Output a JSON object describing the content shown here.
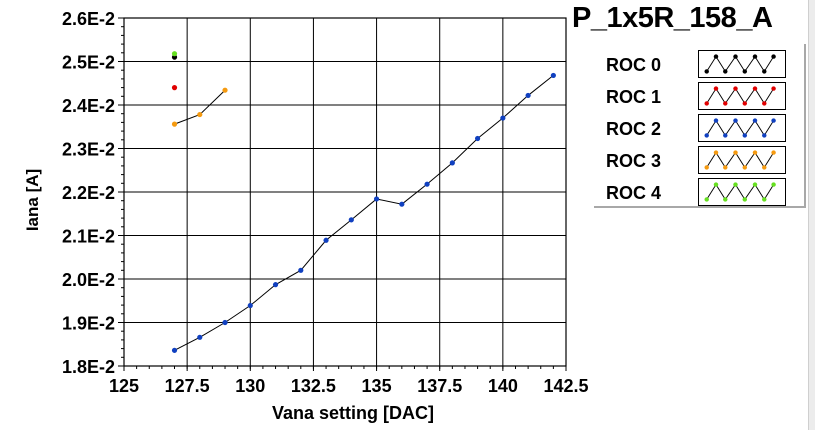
{
  "title": "P_1x5R_158_A",
  "chart_data": {
    "type": "scatter",
    "xlabel": "Vana setting [DAC]",
    "ylabel": "Iana [A]",
    "xlim": [
      125,
      142.5
    ],
    "ylim": [
      0.018,
      0.026
    ],
    "x_ticks": [
      125,
      127.5,
      130,
      132.5,
      135,
      137.5,
      140,
      142.5
    ],
    "x_tick_labels": [
      "125",
      "127.5",
      "130",
      "132.5",
      "135",
      "137.5",
      "140",
      "142.5"
    ],
    "y_ticks": [
      0.018,
      0.019,
      0.02,
      0.021,
      0.022,
      0.023,
      0.024,
      0.025,
      0.026
    ],
    "y_tick_labels": [
      "1.8E-2",
      "1.9E-2",
      "2.0E-2",
      "2.1E-2",
      "2.2E-2",
      "2.3E-2",
      "2.4E-2",
      "2.5E-2",
      "2.6E-2"
    ],
    "grid": true,
    "legend_position": "right",
    "series": [
      {
        "name": "ROC 0",
        "color": "#000000",
        "connected": false,
        "x": [
          127
        ],
        "y": [
          0.0251
        ]
      },
      {
        "name": "ROC 1",
        "color": "#e00000",
        "connected": false,
        "x": [
          127
        ],
        "y": [
          0.0244
        ]
      },
      {
        "name": "ROC 2",
        "color": "#1040c0",
        "connected": true,
        "x": [
          127,
          128,
          129,
          130,
          131,
          132,
          133,
          134,
          135,
          136,
          137,
          138,
          139,
          140,
          141,
          142
        ],
        "y": [
          0.01836,
          0.01866,
          0.019,
          0.01939,
          0.01987,
          0.0202,
          0.02089,
          0.02136,
          0.02184,
          0.02172,
          0.02218,
          0.02267,
          0.02323,
          0.0237,
          0.02422,
          0.02468
        ]
      },
      {
        "name": "ROC 3",
        "color": "#f59a10",
        "connected": true,
        "x": [
          127,
          128,
          129
        ],
        "y": [
          0.02356,
          0.02378,
          0.02434
        ]
      },
      {
        "name": "ROC 4",
        "color": "#66e020",
        "connected": false,
        "x": [
          127
        ],
        "y": [
          0.02518
        ]
      }
    ]
  }
}
